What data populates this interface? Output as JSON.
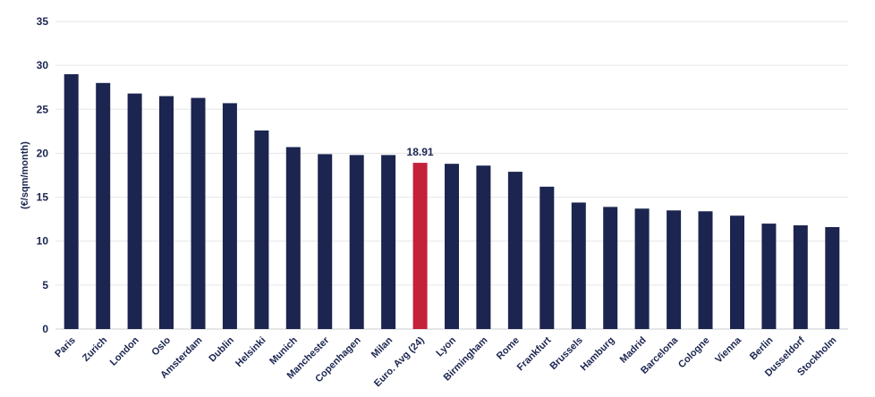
{
  "chart_data": {
    "type": "bar",
    "ylabel": "(€/sqm/month)",
    "ylim": [
      0,
      35
    ],
    "yticks": [
      0,
      5,
      10,
      15,
      20,
      25,
      30,
      35
    ],
    "grid": true,
    "categories": [
      "Paris",
      "Zurich",
      "London",
      "Oslo",
      "Amsterdam",
      "Dublin",
      "Helsinki",
      "Munich",
      "Manchester",
      "Copenhagen",
      "Milan",
      "Euro. Avg (24)",
      "Lyon",
      "Birmingham",
      "Rome",
      "Frankfurt",
      "Brussels",
      "Hamburg",
      "Madrid",
      "Barcelona",
      "Cologne",
      "Vienna",
      "Berlin",
      "Dusseldorf",
      "Stockholm"
    ],
    "values": [
      29.0,
      28.0,
      26.8,
      26.5,
      26.3,
      25.7,
      22.6,
      20.7,
      19.9,
      19.8,
      19.8,
      18.91,
      18.8,
      18.6,
      17.9,
      16.2,
      14.4,
      13.9,
      13.7,
      13.5,
      13.4,
      12.9,
      12.0,
      11.8,
      11.6
    ],
    "highlight_index": 11,
    "highlight_label": "18.91",
    "colors": {
      "bar": "#1b2550",
      "highlight": "#c4213a",
      "grid": "#e6e6e6",
      "text": "#1b2550"
    }
  }
}
